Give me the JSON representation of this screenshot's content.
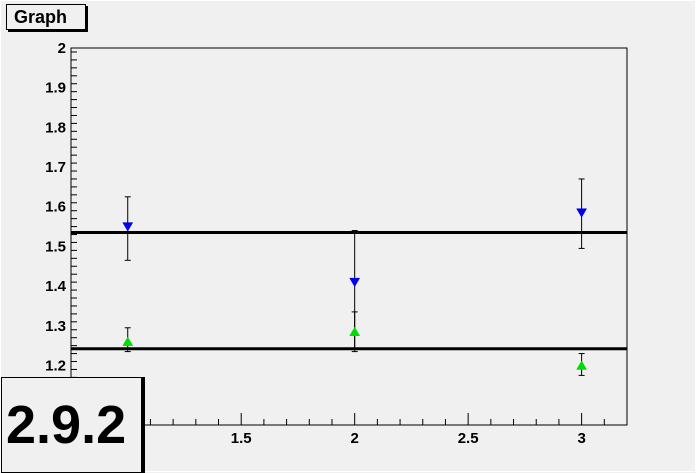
{
  "title_box": {
    "text": "Graph"
  },
  "version_box": {
    "text": "2.9.2"
  },
  "colors": {
    "series_down": "#0000ee",
    "series_up": "#00dd00",
    "fit_line": "#000000",
    "background": "#f0f0f0"
  },
  "chart_data": {
    "type": "scatter",
    "title": "Graph",
    "xlim": [
      0.75,
      3.2
    ],
    "ylim": [
      1.05,
      2.0
    ],
    "x_ticks": [
      "1.5",
      "2",
      "2.5",
      "3"
    ],
    "x_tick_values": [
      1.5,
      2,
      2.5,
      3
    ],
    "y_ticks": [
      "1.2",
      "1.3",
      "1.4",
      "1.5",
      "1.6",
      "1.7",
      "1.8",
      "1.9",
      "2"
    ],
    "y_tick_values": [
      1.2,
      1.3,
      1.4,
      1.5,
      1.6,
      1.7,
      1.8,
      1.9,
      2.0
    ],
    "grid": false,
    "series": [
      {
        "marker": "triangle-down",
        "color": "#0000ee",
        "x": [
          1,
          2,
          3
        ],
        "y": [
          1.55,
          1.41,
          1.585
        ],
        "yerr_low": [
          0.085,
          0.175,
          0.09
        ],
        "yerr_high": [
          0.075,
          0.13,
          0.085
        ]
      },
      {
        "marker": "triangle-up",
        "color": "#00dd00",
        "x": [
          1,
          2,
          3
        ],
        "y": [
          1.26,
          1.285,
          1.2
        ],
        "yerr_low": [
          0.025,
          0.045,
          0.025
        ],
        "yerr_high": [
          0.035,
          0.05,
          0.03
        ]
      }
    ],
    "hlines": [
      1.535,
      1.242
    ]
  }
}
